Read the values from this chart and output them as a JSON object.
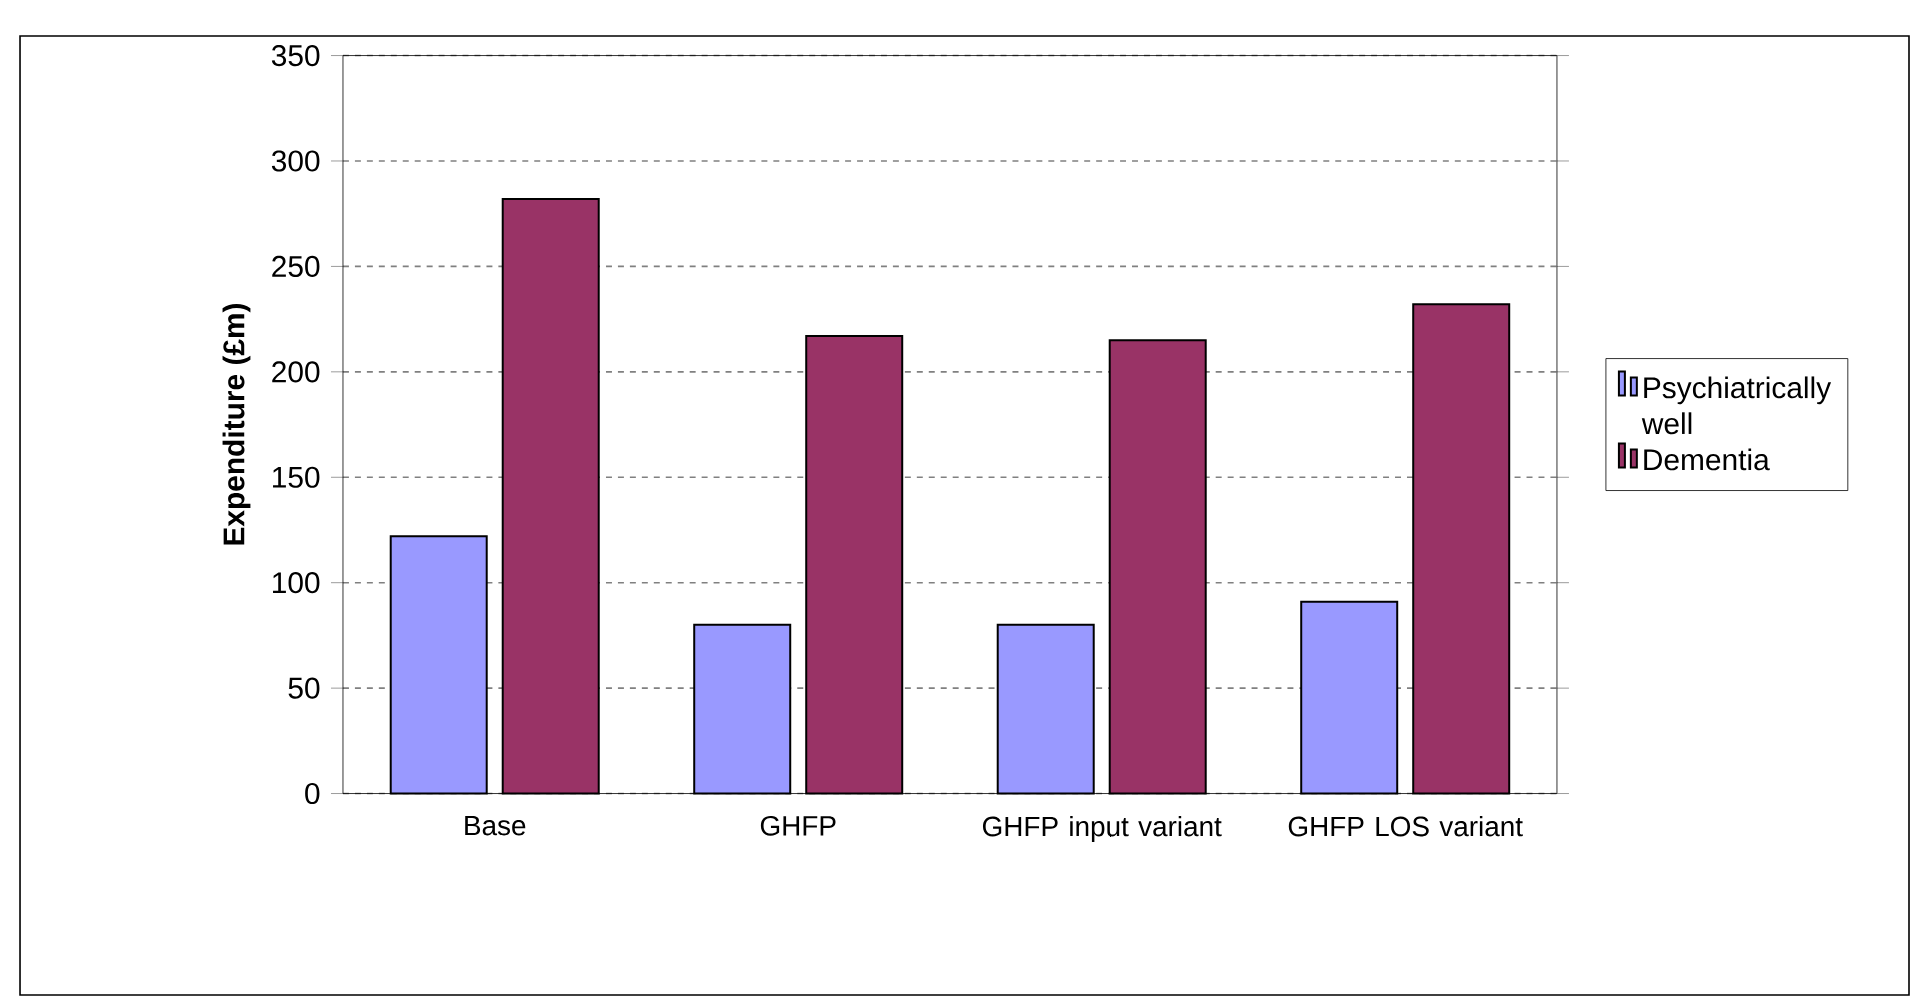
{
  "chart_data": {
    "type": "bar",
    "ylabel": "Expenditure (£m)",
    "categories": [
      "Base",
      "GHFP",
      "GHFP input variant",
      "GHFP LOS variant"
    ],
    "series": [
      {
        "name": "Psychiatrically well",
        "color": "#9999ff",
        "values": [
          122,
          80,
          80,
          91
        ]
      },
      {
        "name": "Dementia",
        "color": "#993366",
        "values": [
          282,
          217,
          215,
          232
        ]
      }
    ],
    "ylim": [
      0,
      350
    ],
    "yticks": [
      0,
      50,
      100,
      150,
      200,
      250,
      300,
      350
    ],
    "grid": "y",
    "legend": "right"
  }
}
